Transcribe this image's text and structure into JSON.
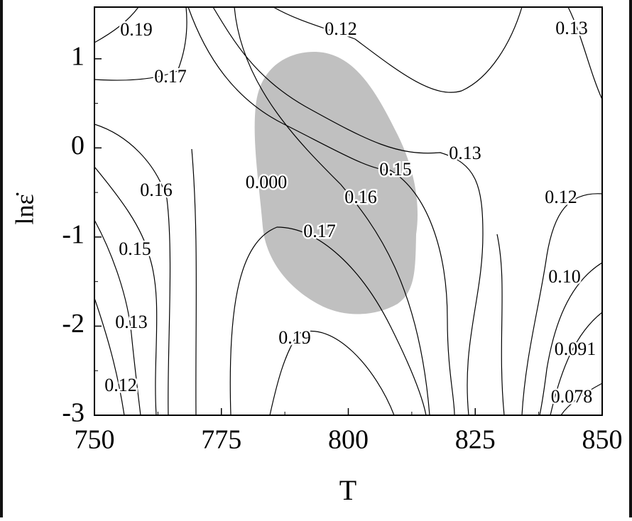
{
  "chart_data": {
    "type": "contour",
    "x_label": "T",
    "y_label": "lnε̇",
    "xlim": [
      750,
      850
    ],
    "xticks": [
      750,
      775,
      800,
      825,
      850
    ],
    "ylim": [
      -3,
      1.58
    ],
    "yticks": [
      -3,
      -2,
      -1,
      0,
      1
    ],
    "region_color": "#c0c0c0",
    "line_color": "#000000",
    "contour_labels": [
      "0.19",
      "0.17",
      "0.12",
      "0.13",
      "0.13",
      "0.15",
      "0.16",
      "0.000",
      "0.16",
      "0.12",
      "0.17",
      "0.15",
      "0.10",
      "0.13",
      "0.19",
      "0.091",
      "0.12",
      "0.078"
    ]
  }
}
